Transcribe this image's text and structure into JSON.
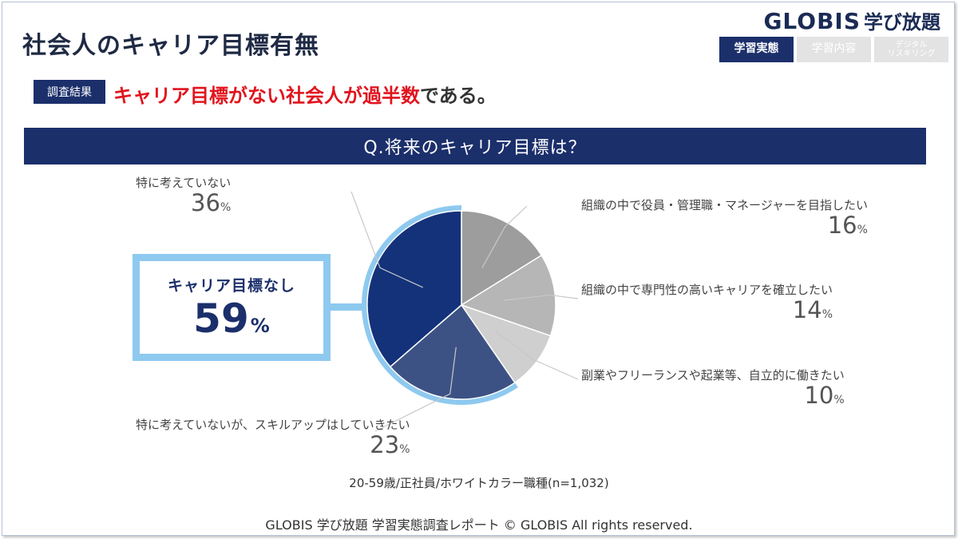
{
  "page": {
    "title": "社会人のキャリア目標有無",
    "logo": {
      "en": "GLOBIS",
      "jp": "学び放題"
    },
    "tabs": [
      {
        "label": "学習実態",
        "active": true
      },
      {
        "label": "学習内容",
        "active": false
      },
      {
        "label": "デジタル\nリスキリング",
        "active": false
      }
    ],
    "badge": "調査結果",
    "headline": {
      "red": "キャリア目標がない社会人が過半数",
      "rest": "である。"
    },
    "question": "Q.将来のキャリア目標は？",
    "summary": {
      "label": "キャリア目標なし",
      "value": "59",
      "unit": "%"
    },
    "footnote": "20-59歳/正社員/ホワイトカラー職種(n=1,032)",
    "copyright": "GLOBIS 学び放題 学習実態調査レポート © GLOBIS All rights reserved."
  },
  "colors": {
    "navy": "#1b2f6b",
    "accent_red": "#e1141e",
    "highlight_outline": "#8ec9ef"
  },
  "chart_data": {
    "type": "pie",
    "unit": "%",
    "slices": [
      {
        "label": "組織の中で役員・管理職・マネージャーを目指したい",
        "value": 16,
        "color": "#9d9d9d"
      },
      {
        "label": "組織の中で専門性の高いキャリアを確立したい",
        "value": 14,
        "color": "#b6b6b6"
      },
      {
        "label": "副業やフリーランスや起業等、自立的に働きたい",
        "value": 10,
        "color": "#cfcfcf"
      },
      {
        "label": "特に考えていないが、スキルアップはしていきたい",
        "value": 23,
        "color": "#3d5284"
      },
      {
        "label": "特に考えていない",
        "value": 36,
        "color": "#13327a"
      }
    ],
    "highlighted_group": {
      "label": "キャリア目標なし",
      "value": 59,
      "slice_indices": [
        3,
        4
      ]
    }
  }
}
